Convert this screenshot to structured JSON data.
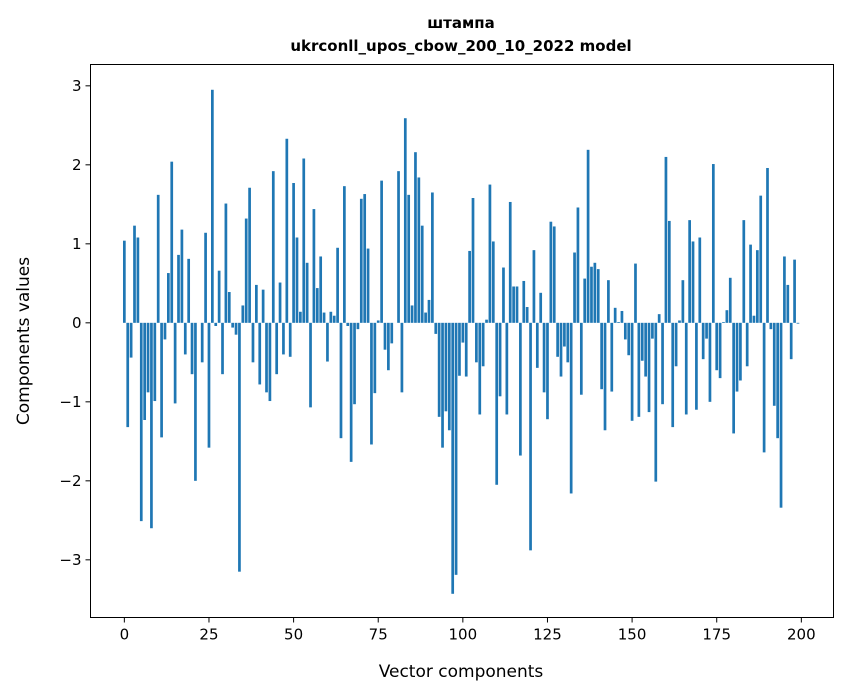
{
  "chart_data": {
    "type": "bar",
    "title": "штампа",
    "subtitle": "ukrconll_upos_cbow_200_10_2022 model",
    "xlabel": "Vector components",
    "ylabel": "Components values",
    "xlim": [
      -10,
      209.5
    ],
    "ylim": [
      -3.73,
      3.27
    ],
    "xticks": [
      0,
      25,
      50,
      75,
      100,
      125,
      150,
      175,
      200
    ],
    "yticks": [
      -3,
      -2,
      -1,
      0,
      1,
      2,
      3
    ],
    "grid": false,
    "bar_color": "#1f77b4",
    "values": [
      1.04,
      -1.32,
      -0.44,
      1.23,
      1.08,
      -2.51,
      -1.23,
      -0.88,
      -2.6,
      -0.99,
      1.62,
      -1.45,
      -0.21,
      0.63,
      2.04,
      -1.02,
      0.86,
      1.18,
      -0.4,
      0.81,
      -0.65,
      -2.0,
      0.0,
      -0.5,
      1.14,
      -1.58,
      2.95,
      -0.04,
      0.66,
      -0.65,
      1.51,
      0.39,
      -0.06,
      -0.15,
      -3.15,
      0.22,
      1.32,
      1.71,
      -0.5,
      0.48,
      -0.78,
      0.42,
      -0.88,
      -0.99,
      1.92,
      -0.65,
      0.51,
      -0.4,
      2.33,
      -0.43,
      1.77,
      1.08,
      0.14,
      2.08,
      0.76,
      -1.07,
      1.44,
      0.44,
      0.84,
      0.13,
      -0.49,
      0.14,
      0.09,
      0.95,
      -1.46,
      1.73,
      -0.04,
      -1.76,
      -1.03,
      -0.08,
      1.57,
      1.63,
      0.94,
      -1.54,
      -0.89,
      0.03,
      1.8,
      -0.34,
      -0.6,
      -0.26,
      0.0,
      1.92,
      -0.88,
      2.59,
      1.62,
      0.22,
      2.16,
      1.84,
      1.23,
      0.13,
      0.29,
      1.65,
      -0.14,
      -1.19,
      -1.58,
      -1.12,
      -1.36,
      -3.43,
      -3.19,
      -0.67,
      -0.25,
      -0.68,
      0.91,
      1.58,
      -0.5,
      -1.16,
      -0.55,
      0.04,
      1.75,
      1.03,
      -2.05,
      -0.93,
      0.7,
      -1.16,
      1.53,
      0.46,
      0.46,
      -1.68,
      0.53,
      0.2,
      -2.88,
      0.92,
      -0.57,
      0.38,
      -0.88,
      -1.22,
      1.28,
      1.22,
      -0.43,
      -0.68,
      -0.3,
      -0.5,
      -2.16,
      0.89,
      1.46,
      -0.91,
      0.56,
      2.19,
      0.71,
      0.76,
      0.68,
      -0.84,
      -1.36,
      0.54,
      -0.87,
      0.19,
      0.01,
      0.15,
      -0.21,
      -0.41,
      -1.24,
      0.75,
      -1.19,
      -0.48,
      -0.68,
      -1.13,
      -0.2,
      -2.01,
      0.11,
      -1.03,
      2.1,
      1.29,
      -1.32,
      -0.55,
      0.03,
      0.54,
      -1.16,
      1.3,
      1.03,
      -1.1,
      1.08,
      -0.46,
      -0.2,
      -1.0,
      2.01,
      -0.6,
      -0.7,
      0.01,
      0.16,
      0.57,
      -1.4,
      -0.87,
      -0.73,
      1.3,
      -0.55,
      0.99,
      0.09,
      0.92,
      1.61,
      -1.64,
      1.96,
      -0.08,
      -1.05,
      -1.46,
      -2.34,
      0.84,
      0.48,
      -0.46,
      0.8,
      -0.01
    ]
  }
}
